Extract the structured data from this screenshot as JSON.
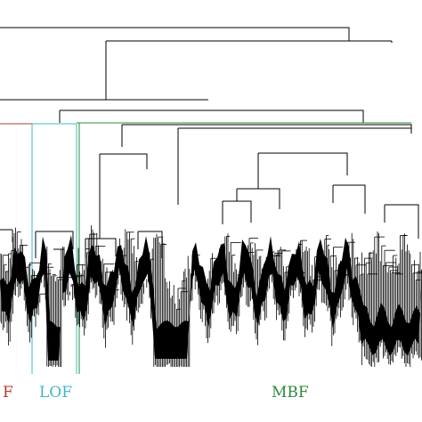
{
  "labels": {
    "left": "F",
    "middle": "LOF",
    "right": "MBF"
  },
  "colors": {
    "tree": "#000000",
    "left_group": "#b03a2e",
    "middle_group": "#3fb8c4",
    "right_group": "#2e8b3a",
    "background": "#ffffff"
  }
}
